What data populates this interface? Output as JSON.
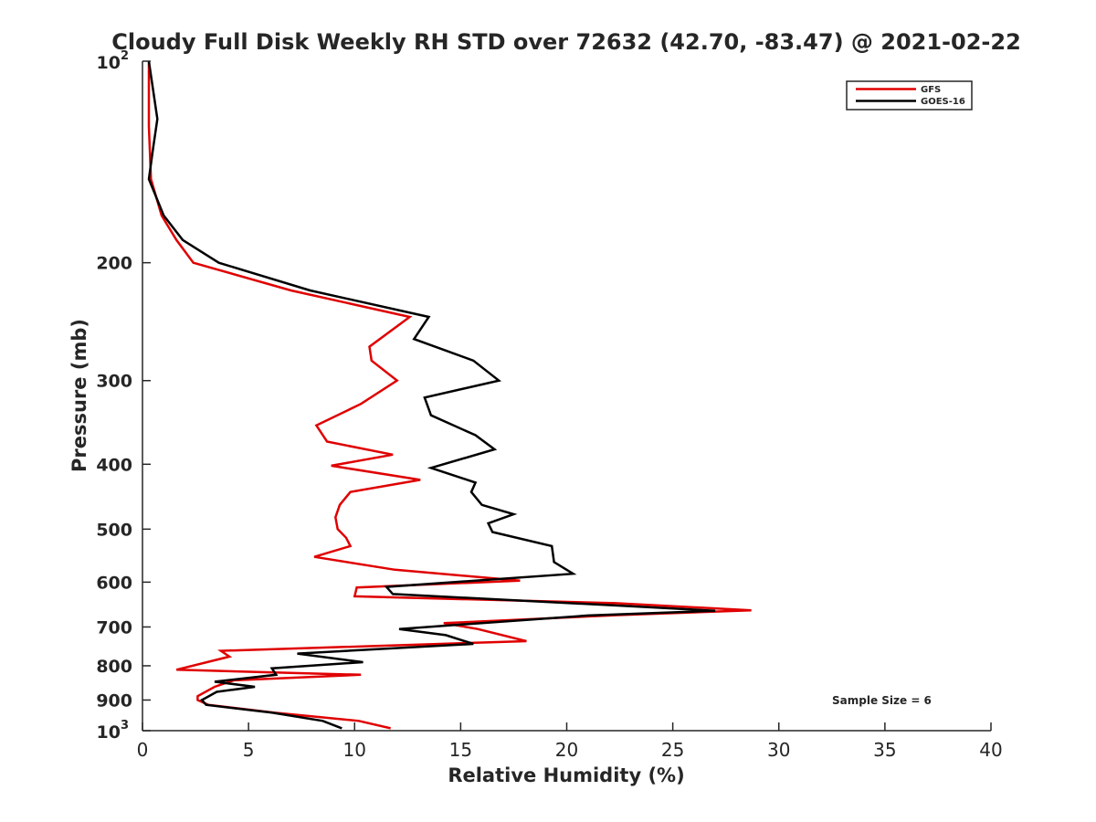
{
  "chart_data": {
    "type": "line",
    "title": "Cloudy Full Disk Weekly RH STD over 72632 (42.70, -83.47) @ 2021-02-22",
    "xlabel": "Relative Humidity (%)",
    "ylabel": "Pressure (mb)",
    "xlim": [
      0,
      40
    ],
    "ylim": [
      100,
      1000
    ],
    "y_scale": "log",
    "y_reversed": true,
    "grid": false,
    "x_ticks": [
      "0",
      "5",
      "10",
      "15",
      "20",
      "25",
      "30",
      "35",
      "40"
    ],
    "x_tick_values": [
      0,
      5,
      10,
      15,
      20,
      25,
      30,
      35,
      40
    ],
    "y_ticks": [
      {
        "value": 100,
        "base": "10",
        "exp": "2"
      },
      {
        "value": 200,
        "label": "200"
      },
      {
        "value": 300,
        "label": "300"
      },
      {
        "value": 400,
        "label": "400"
      },
      {
        "value": 500,
        "label": "500"
      },
      {
        "value": 600,
        "label": "600"
      },
      {
        "value": 700,
        "label": "700"
      },
      {
        "value": 800,
        "label": "800"
      },
      {
        "value": 900,
        "label": "900"
      },
      {
        "value": 1000,
        "base": "10",
        "exp": "3"
      }
    ],
    "legend_position": "top-right",
    "annotation": "Sample Size = 6",
    "series": [
      {
        "name": "GFS",
        "color": "#e00000",
        "points": [
          [
            0.3,
            100
          ],
          [
            0.3,
            125
          ],
          [
            0.4,
            150
          ],
          [
            0.9,
            170
          ],
          [
            1.6,
            185
          ],
          [
            2.4,
            200
          ],
          [
            7,
            220
          ],
          [
            12.6,
            241
          ],
          [
            10.7,
            267
          ],
          [
            10.8,
            280
          ],
          [
            12,
            300
          ],
          [
            10.3,
            325
          ],
          [
            8.2,
            350
          ],
          [
            8.7,
            370
          ],
          [
            11.8,
            387
          ],
          [
            8.9,
            402
          ],
          [
            13.1,
            422
          ],
          [
            9.8,
            440
          ],
          [
            9.3,
            460
          ],
          [
            9.1,
            480
          ],
          [
            9.2,
            500
          ],
          [
            9.6,
            515
          ],
          [
            9.8,
            530
          ],
          [
            8.1,
            550
          ],
          [
            11.9,
            575
          ],
          [
            17.8,
            597
          ],
          [
            10.1,
            611
          ],
          [
            10,
            630
          ],
          [
            22.3,
            645
          ],
          [
            28.7,
            661
          ],
          [
            22.4,
            672
          ],
          [
            14.2,
            691
          ],
          [
            15.8,
            705
          ],
          [
            18.1,
            735
          ],
          [
            3.7,
            760
          ],
          [
            4.1,
            775
          ],
          [
            1.6,
            811
          ],
          [
            10.3,
            825
          ],
          [
            4.3,
            841
          ],
          [
            3.4,
            860
          ],
          [
            2.6,
            888
          ],
          [
            2.6,
            900
          ],
          [
            3.1,
            915
          ],
          [
            6.2,
            940
          ],
          [
            10.2,
            967
          ],
          [
            11.7,
            992
          ]
        ]
      },
      {
        "name": "GOES-16",
        "color": "#000000",
        "points": [
          [
            0.3,
            100
          ],
          [
            0.7,
            122
          ],
          [
            0.5,
            135
          ],
          [
            0.3,
            150
          ],
          [
            1.0,
            170
          ],
          [
            1.9,
            185
          ],
          [
            3.6,
            200
          ],
          [
            7.9,
            220
          ],
          [
            13.5,
            241
          ],
          [
            12.8,
            260
          ],
          [
            15.6,
            280
          ],
          [
            16.8,
            300
          ],
          [
            13.3,
            318
          ],
          [
            13.6,
            338
          ],
          [
            15.7,
            362
          ],
          [
            16.6,
            380
          ],
          [
            13.6,
            405
          ],
          [
            15.7,
            426
          ],
          [
            15.5,
            440
          ],
          [
            16.0,
            460
          ],
          [
            17.5,
            475
          ],
          [
            16.3,
            490
          ],
          [
            16.5,
            505
          ],
          [
            19.3,
            530
          ],
          [
            19.4,
            560
          ],
          [
            20.3,
            583
          ],
          [
            11.5,
            610
          ],
          [
            11.8,
            625
          ],
          [
            22.3,
            650
          ],
          [
            27.0,
            662
          ],
          [
            21.0,
            673
          ],
          [
            12.1,
            705
          ],
          [
            14.3,
            720
          ],
          [
            15.6,
            742
          ],
          [
            7.3,
            767
          ],
          [
            10.4,
            790
          ],
          [
            6.1,
            807
          ],
          [
            6.3,
            825
          ],
          [
            3.4,
            845
          ],
          [
            5.3,
            860
          ],
          [
            3.5,
            875
          ],
          [
            2.8,
            900
          ],
          [
            3.0,
            915
          ],
          [
            6.1,
            940
          ],
          [
            8.5,
            967
          ],
          [
            9.4,
            992
          ]
        ]
      }
    ]
  }
}
